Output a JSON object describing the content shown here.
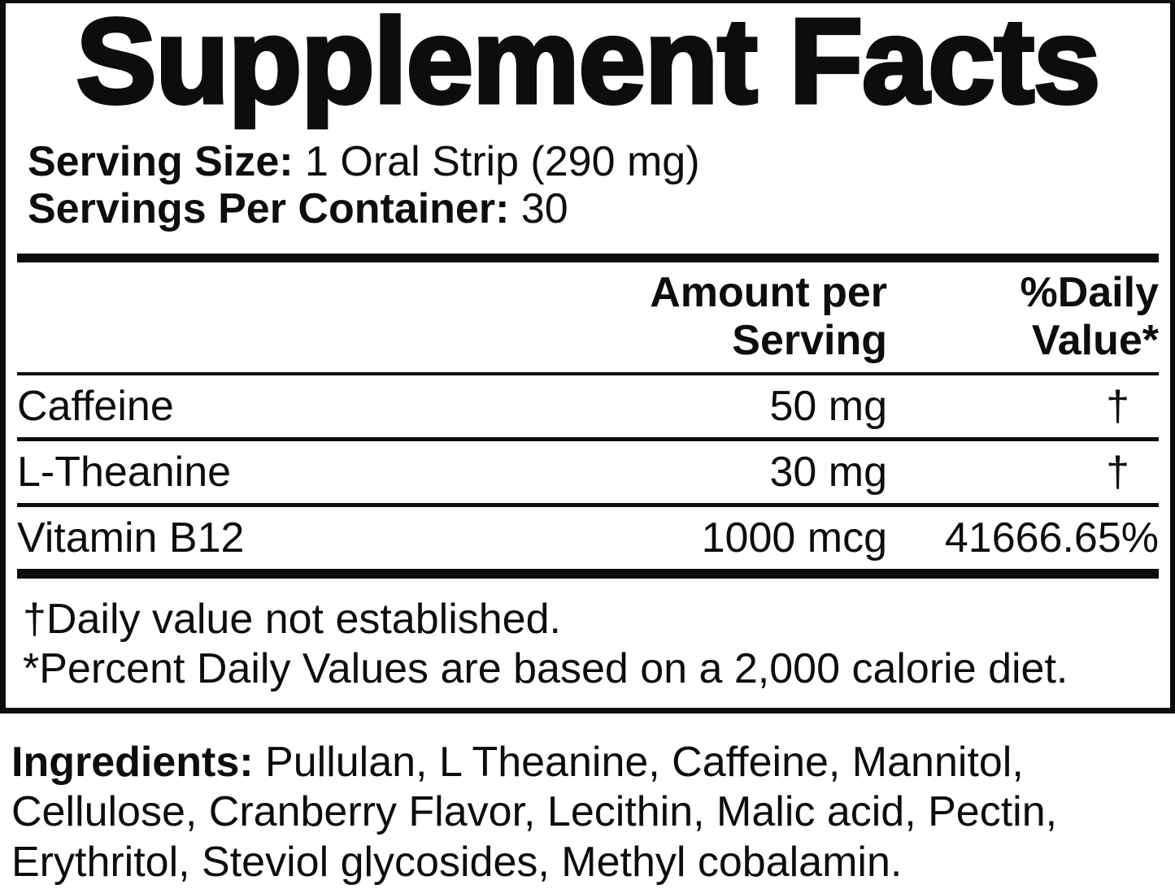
{
  "colors": {
    "ink": "#0d0d0e",
    "background": "#ffffff"
  },
  "label": {
    "title": "Supplement Facts",
    "serving": {
      "serving_size": {
        "label": "Serving Size:",
        "value": "1 Oral Strip (290 mg)"
      },
      "servings_per_container": {
        "label": "Servings Per Container:",
        "value": "30"
      }
    },
    "table": {
      "amount_header": "Amount per Serving",
      "daily_value_header": "%Daily Value*",
      "rows": [
        {
          "name": "Caffeine",
          "amount": "50 mg",
          "daily_value": "†"
        },
        {
          "name": "L-Theanine",
          "amount": "30 mg",
          "daily_value": "†"
        },
        {
          "name": "Vitamin B12",
          "amount": "1000 mcg",
          "daily_value": "41666.65%"
        }
      ]
    },
    "footnotes": {
      "dagger": "†Daily value not established.",
      "percent": "*Percent Daily Values are based on a 2,000 calorie diet."
    },
    "ingredients": {
      "label": "Ingredients:",
      "value": "Pullulan, L Theanine, Caffeine, Mannitol, Cellulose, Cranberry Flavor, Lecithin, Malic acid, Pectin, Erythritol, Steviol glycosides, Methyl cobalamin."
    }
  }
}
